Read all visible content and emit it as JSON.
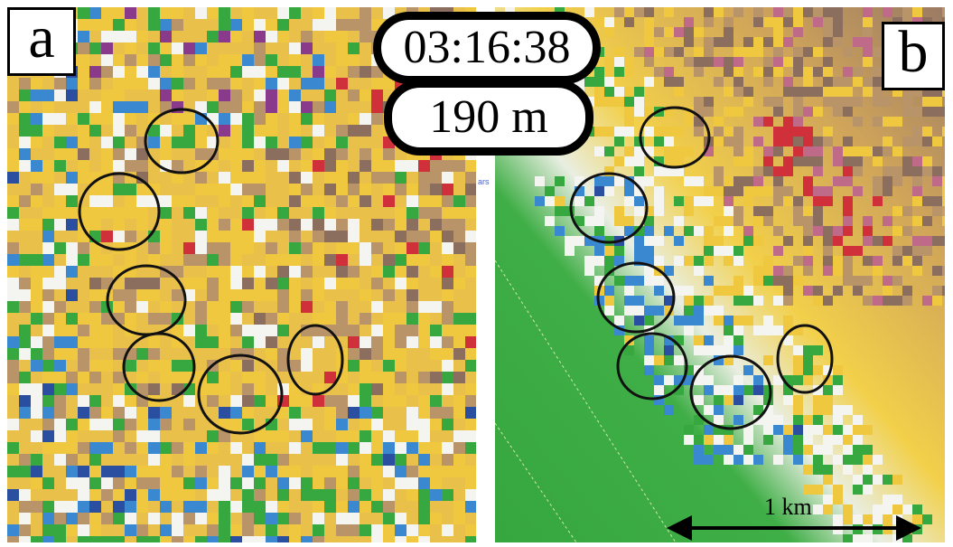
{
  "panels": {
    "a": {
      "label": "a"
    },
    "b": {
      "label": "b"
    }
  },
  "time_label": "03:16:38",
  "height_label": "190 m",
  "scale_bar": {
    "text": "1 km"
  },
  "tiny_tag": "ars",
  "colors": {
    "yellow": "#f0c840",
    "tan": "#b89468",
    "brown": "#8c6e5e",
    "green": "#37a840",
    "blue": "#3a88d0",
    "dark_blue": "#2a4ea0",
    "purple": "#8a3a8a",
    "red": "#d0303a",
    "pink": "#c06a8a",
    "white": "#f4f4f0",
    "circle": "#111111"
  }
}
